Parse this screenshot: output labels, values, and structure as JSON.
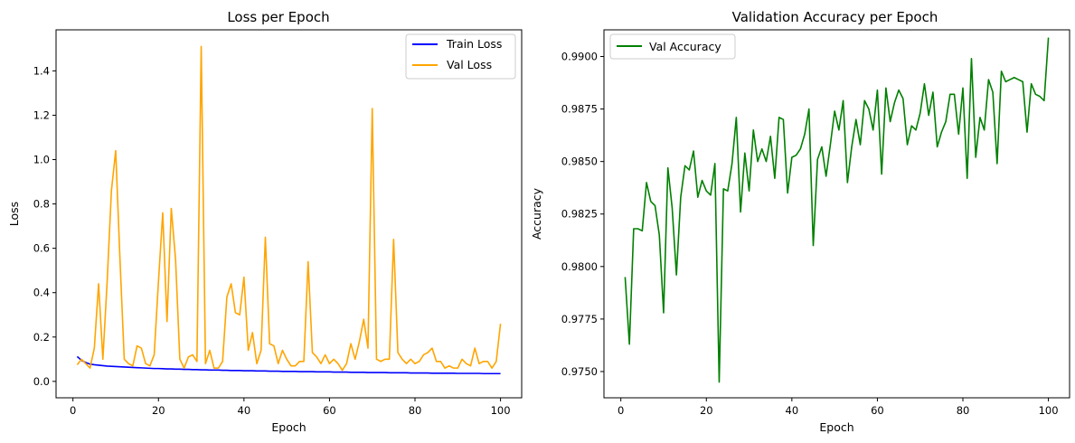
{
  "chart_data": [
    {
      "type": "line",
      "title": "Loss per Epoch",
      "xlabel": "Epoch",
      "ylabel": "Loss",
      "xlim": [
        -3.95,
        104.95
      ],
      "ylim": [
        -0.074,
        1.585
      ],
      "xticks": [
        0,
        20,
        40,
        60,
        80,
        100
      ],
      "yticks": [
        0.0,
        0.2,
        0.4,
        0.6,
        0.8,
        1.0,
        1.2,
        1.4
      ],
      "ytick_labels": [
        "0.0",
        "0.2",
        "0.4",
        "0.6",
        "0.8",
        "1.0",
        "1.2",
        "1.4"
      ],
      "legend": "upper right",
      "x": [
        1,
        2,
        3,
        4,
        5,
        6,
        7,
        8,
        9,
        10,
        11,
        12,
        13,
        14,
        15,
        16,
        17,
        18,
        19,
        20,
        21,
        22,
        23,
        24,
        25,
        26,
        27,
        28,
        29,
        30,
        31,
        32,
        33,
        34,
        35,
        36,
        37,
        38,
        39,
        40,
        41,
        42,
        43,
        44,
        45,
        46,
        47,
        48,
        49,
        50,
        51,
        52,
        53,
        54,
        55,
        56,
        57,
        58,
        59,
        60,
        61,
        62,
        63,
        64,
        65,
        66,
        67,
        68,
        69,
        70,
        71,
        72,
        73,
        74,
        75,
        76,
        77,
        78,
        79,
        80,
        81,
        82,
        83,
        84,
        85,
        86,
        87,
        88,
        89,
        90,
        91,
        92,
        93,
        94,
        95,
        96,
        97,
        98,
        99,
        100
      ],
      "series": [
        {
          "name": "Train Loss",
          "color": "#0000ff",
          "values": [
            0.112,
            0.095,
            0.085,
            0.078,
            0.075,
            0.073,
            0.071,
            0.069,
            0.068,
            0.067,
            0.066,
            0.065,
            0.064,
            0.063,
            0.062,
            0.061,
            0.06,
            0.059,
            0.058,
            0.058,
            0.057,
            0.056,
            0.056,
            0.055,
            0.055,
            0.054,
            0.054,
            0.053,
            0.053,
            0.052,
            0.052,
            0.051,
            0.051,
            0.051,
            0.05,
            0.05,
            0.049,
            0.049,
            0.049,
            0.048,
            0.048,
            0.048,
            0.047,
            0.047,
            0.047,
            0.046,
            0.046,
            0.046,
            0.045,
            0.045,
            0.045,
            0.045,
            0.044,
            0.044,
            0.044,
            0.044,
            0.043,
            0.043,
            0.043,
            0.043,
            0.042,
            0.042,
            0.042,
            0.042,
            0.041,
            0.041,
            0.041,
            0.041,
            0.04,
            0.04,
            0.04,
            0.04,
            0.04,
            0.039,
            0.039,
            0.039,
            0.039,
            0.039,
            0.038,
            0.038,
            0.038,
            0.038,
            0.038,
            0.037,
            0.037,
            0.037,
            0.037,
            0.037,
            0.037,
            0.036,
            0.036,
            0.036,
            0.036,
            0.036,
            0.036,
            0.035,
            0.035,
            0.035,
            0.035,
            0.035
          ]
        },
        {
          "name": "Val Loss",
          "color": "#ffa500",
          "values": [
            0.075,
            0.1,
            0.08,
            0.06,
            0.15,
            0.44,
            0.1,
            0.45,
            0.86,
            1.04,
            0.55,
            0.1,
            0.08,
            0.07,
            0.16,
            0.15,
            0.08,
            0.07,
            0.12,
            0.45,
            0.76,
            0.27,
            0.78,
            0.55,
            0.1,
            0.06,
            0.11,
            0.12,
            0.09,
            1.51,
            0.08,
            0.14,
            0.06,
            0.06,
            0.09,
            0.38,
            0.44,
            0.31,
            0.3,
            0.47,
            0.14,
            0.22,
            0.08,
            0.14,
            0.65,
            0.17,
            0.16,
            0.08,
            0.14,
            0.1,
            0.07,
            0.07,
            0.09,
            0.09,
            0.54,
            0.13,
            0.11,
            0.08,
            0.12,
            0.08,
            0.1,
            0.08,
            0.05,
            0.08,
            0.17,
            0.1,
            0.18,
            0.28,
            0.15,
            1.23,
            0.1,
            0.09,
            0.1,
            0.1,
            0.64,
            0.13,
            0.1,
            0.08,
            0.1,
            0.08,
            0.09,
            0.12,
            0.13,
            0.15,
            0.09,
            0.09,
            0.06,
            0.07,
            0.06,
            0.06,
            0.1,
            0.08,
            0.07,
            0.15,
            0.08,
            0.09,
            0.09,
            0.06,
            0.09,
            0.26
          ]
        }
      ]
    },
    {
      "type": "line",
      "title": "Validation Accuracy per Epoch",
      "xlabel": "Epoch",
      "ylabel": "Accuracy",
      "xlim": [
        -3.95,
        104.95
      ],
      "ylim": [
        0.97375,
        0.99127
      ],
      "xticks": [
        0,
        20,
        40,
        60,
        80,
        100
      ],
      "yticks": [
        0.975,
        0.9775,
        0.98,
        0.9825,
        0.985,
        0.9875,
        0.99
      ],
      "ytick_labels": [
        "0.9750",
        "0.9775",
        "0.9800",
        "0.9825",
        "0.9850",
        "0.9875",
        "0.9900"
      ],
      "legend": "upper left",
      "x": [
        1,
        2,
        3,
        4,
        5,
        6,
        7,
        8,
        9,
        10,
        11,
        12,
        13,
        14,
        15,
        16,
        17,
        18,
        19,
        20,
        21,
        22,
        23,
        24,
        25,
        26,
        27,
        28,
        29,
        30,
        31,
        32,
        33,
        34,
        35,
        36,
        37,
        38,
        39,
        40,
        41,
        42,
        43,
        44,
        45,
        46,
        47,
        48,
        49,
        50,
        51,
        52,
        53,
        54,
        55,
        56,
        57,
        58,
        59,
        60,
        61,
        62,
        63,
        64,
        65,
        66,
        67,
        68,
        69,
        70,
        71,
        72,
        73,
        74,
        75,
        76,
        77,
        78,
        79,
        80,
        81,
        82,
        83,
        84,
        85,
        86,
        87,
        88,
        89,
        90,
        91,
        92,
        93,
        94,
        95,
        96,
        97,
        98,
        99,
        100
      ],
      "series": [
        {
          "name": "Val Accuracy",
          "color": "#008000",
          "values": [
            0.9795,
            0.9763,
            0.9818,
            0.9818,
            0.9817,
            0.984,
            0.9831,
            0.9829,
            0.9815,
            0.9778,
            0.9847,
            0.9828,
            0.9796,
            0.9833,
            0.9848,
            0.9846,
            0.9855,
            0.9833,
            0.9841,
            0.9836,
            0.9834,
            0.9849,
            0.9745,
            0.9837,
            0.9836,
            0.9849,
            0.9871,
            0.9826,
            0.9854,
            0.9836,
            0.9865,
            0.985,
            0.9856,
            0.985,
            0.9862,
            0.9842,
            0.9871,
            0.987,
            0.9835,
            0.9852,
            0.9853,
            0.9856,
            0.9863,
            0.9875,
            0.981,
            0.9851,
            0.9857,
            0.9843,
            0.9858,
            0.9874,
            0.9865,
            0.9879,
            0.984,
            0.9857,
            0.987,
            0.9858,
            0.9879,
            0.9875,
            0.9865,
            0.9884,
            0.9844,
            0.9885,
            0.9869,
            0.9878,
            0.9884,
            0.988,
            0.9858,
            0.9867,
            0.9865,
            0.9873,
            0.9887,
            0.9872,
            0.9883,
            0.9857,
            0.9864,
            0.9869,
            0.9882,
            0.9882,
            0.9863,
            0.9885,
            0.9842,
            0.9899,
            0.9852,
            0.9871,
            0.9865,
            0.9889,
            0.9883,
            0.9849,
            0.9893,
            0.9888,
            0.9889,
            0.989,
            0.9889,
            0.9888,
            0.9864,
            0.9887,
            0.9882,
            0.9881,
            0.9879,
            0.9909
          ]
        }
      ]
    }
  ]
}
